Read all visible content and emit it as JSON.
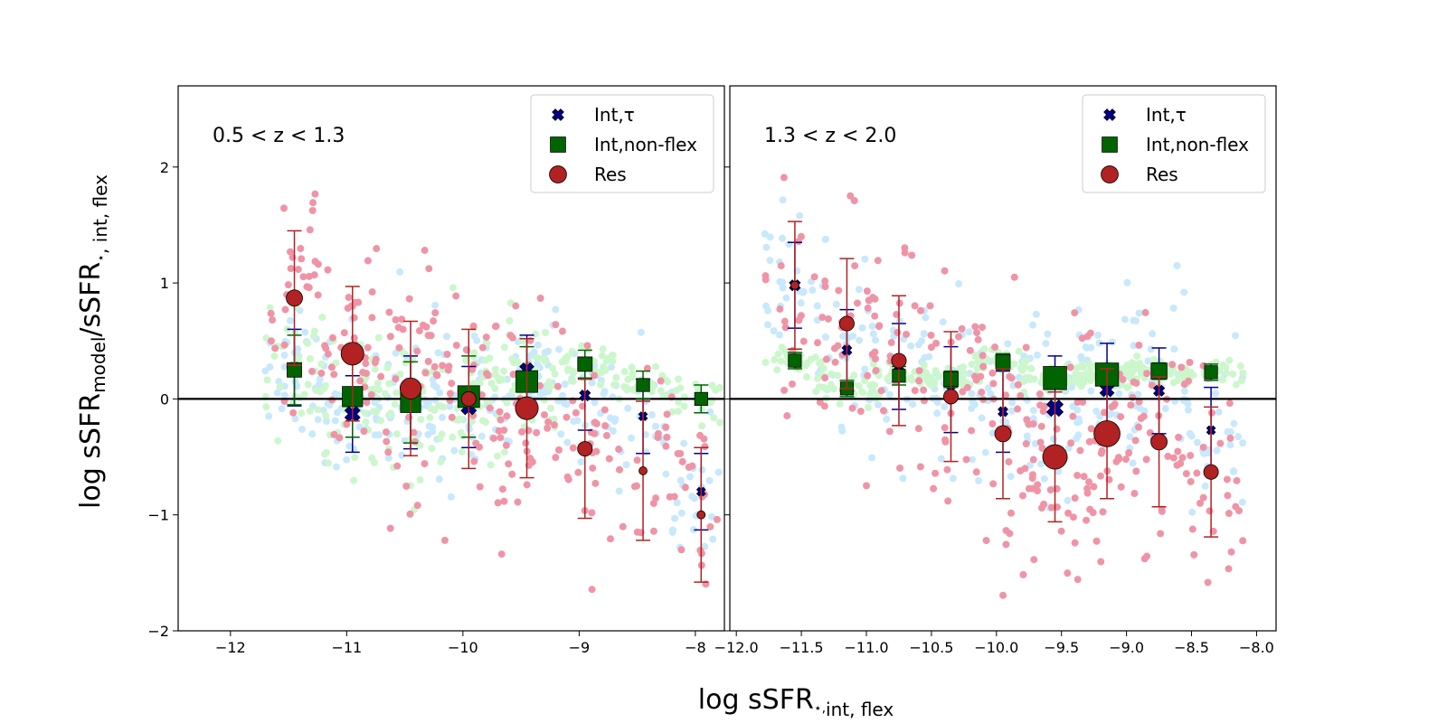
{
  "figure": {
    "xlabel": {
      "main": "log sSFR",
      "sub": "int, flex",
      "sup": "⋆,"
    },
    "ylabel": {
      "main": "log sSFR",
      "sub1": "model",
      "mid": "/sSFR",
      "sup2": "⋆",
      "sub2": ", int, flex"
    }
  },
  "colors": {
    "int_tau": "#00008b",
    "int_nonflex": "#006400",
    "res": "#b22222",
    "scatter_int_tau": "#87cefa",
    "scatter_int_nonflex": "#90ee90",
    "scatter_res": "#dc143c"
  },
  "chart_data": [
    {
      "type": "scatter",
      "panel_label": "0.5 < z < 1.3",
      "xlim": [
        -12.45,
        -7.75
      ],
      "ylim": [
        -2,
        2.7
      ],
      "xticks": [
        -12,
        -11,
        -10,
        -9,
        -8
      ],
      "xtick_labels": [
        "−12",
        "−11",
        "−10",
        "−9",
        "−8"
      ],
      "yticks": [
        -2,
        -1,
        0,
        1,
        2
      ],
      "ytick_labels": [
        "−2",
        "−1",
        "0",
        "1",
        "2"
      ],
      "hline": 0,
      "legend": {
        "placement": "top-right",
        "entries": [
          "Int,τ",
          "Int,non-flex",
          "Res"
        ]
      },
      "series": [
        {
          "name": "Int,τ",
          "marker": "x",
          "points": [
            {
              "x": -11.45,
              "y": 0.27,
              "err": 0.33,
              "size": 1.0
            },
            {
              "x": -10.95,
              "y": -0.13,
              "err": 0.33,
              "size": 1.4
            },
            {
              "x": -10.45,
              "y": -0.03,
              "err": 0.4,
              "size": 1.4
            },
            {
              "x": -9.95,
              "y": -0.07,
              "err": 0.35,
              "size": 1.4
            },
            {
              "x": -9.45,
              "y": 0.25,
              "err": 0.3,
              "size": 1.3
            },
            {
              "x": -8.95,
              "y": 0.03,
              "err": 0.3,
              "size": 1.0
            },
            {
              "x": -8.45,
              "y": -0.15,
              "err": 0.32,
              "size": 0.8
            },
            {
              "x": -7.95,
              "y": -0.8,
              "err": 0.33,
              "size": 0.8
            }
          ]
        },
        {
          "name": "Int,non-flex",
          "marker": "square",
          "points": [
            {
              "x": -11.45,
              "y": 0.25,
              "err": 0.3,
              "size": 1.0
            },
            {
              "x": -10.95,
              "y": 0.02,
              "err": 0.35,
              "size": 1.4
            },
            {
              "x": -10.45,
              "y": -0.03,
              "err": 0.35,
              "size": 1.4
            },
            {
              "x": -9.95,
              "y": 0.02,
              "err": 0.35,
              "size": 1.5
            },
            {
              "x": -9.45,
              "y": 0.15,
              "err": 0.3,
              "size": 1.5
            },
            {
              "x": -8.95,
              "y": 0.3,
              "err": 0.12,
              "size": 1.0
            },
            {
              "x": -8.45,
              "y": 0.12,
              "err": 0.12,
              "size": 0.9
            },
            {
              "x": -7.95,
              "y": 0.0,
              "err": 0.12,
              "size": 0.9
            }
          ]
        },
        {
          "name": "Res",
          "marker": "circle",
          "points": [
            {
              "x": -11.45,
              "y": 0.87,
              "err": 0.58,
              "size": 1.0
            },
            {
              "x": -10.95,
              "y": 0.39,
              "err": 0.58,
              "size": 1.4
            },
            {
              "x": -10.45,
              "y": 0.09,
              "err": 0.58,
              "size": 1.3
            },
            {
              "x": -9.95,
              "y": 0.0,
              "err": 0.6,
              "size": 0.9
            },
            {
              "x": -9.45,
              "y": -0.08,
              "err": 0.6,
              "size": 1.4
            },
            {
              "x": -8.95,
              "y": -0.43,
              "err": 0.6,
              "size": 0.9
            },
            {
              "x": -8.45,
              "y": -0.62,
              "err": 0.6,
              "size": 0.5
            },
            {
              "x": -7.95,
              "y": -1.0,
              "err": 0.58,
              "size": 0.5
            }
          ]
        }
      ]
    },
    {
      "type": "scatter",
      "panel_label": "1.3 < z < 2.0",
      "xlim": [
        -12.05,
        -7.85
      ],
      "ylim": [
        -2,
        2.7
      ],
      "xticks": [
        -12.0,
        -11.5,
        -11.0,
        -10.5,
        -10.0,
        -9.5,
        -9.0,
        -8.5,
        -8.0
      ],
      "xtick_labels": [
        "−12.0",
        "−11.5",
        "−11.0",
        "−10.5",
        "−10.0",
        "−9.5",
        "−9.0",
        "−8.5",
        "−8.0"
      ],
      "hline": 0,
      "legend": {
        "placement": "top-right",
        "entries": [
          "Int,τ",
          "Int,non-flex",
          "Res"
        ]
      },
      "series": [
        {
          "name": "Int,τ",
          "marker": "x",
          "points": [
            {
              "x": -11.55,
              "y": 0.98,
              "err": 0.37,
              "size": 1.0
            },
            {
              "x": -11.15,
              "y": 0.42,
              "err": 0.35,
              "size": 0.9
            },
            {
              "x": -10.75,
              "y": 0.28,
              "err": 0.37,
              "size": 0.9
            },
            {
              "x": -10.35,
              "y": 0.08,
              "err": 0.37,
              "size": 0.9
            },
            {
              "x": -9.95,
              "y": -0.11,
              "err": 0.35,
              "size": 0.9
            },
            {
              "x": -9.55,
              "y": -0.08,
              "err": 0.45,
              "size": 1.5
            },
            {
              "x": -9.15,
              "y": 0.08,
              "err": 0.4,
              "size": 1.3
            },
            {
              "x": -8.75,
              "y": 0.07,
              "err": 0.37,
              "size": 1.0
            },
            {
              "x": -8.35,
              "y": -0.27,
              "err": 0.37,
              "size": 0.8
            }
          ]
        },
        {
          "name": "Int,non-flex",
          "marker": "square",
          "points": [
            {
              "x": -11.55,
              "y": 0.33,
              "err": 0.07,
              "size": 0.9
            },
            {
              "x": -11.15,
              "y": 0.09,
              "err": 0.07,
              "size": 0.9
            },
            {
              "x": -10.75,
              "y": 0.2,
              "err": 0.08,
              "size": 0.9
            },
            {
              "x": -10.35,
              "y": 0.17,
              "err": 0.07,
              "size": 1.0
            },
            {
              "x": -9.95,
              "y": 0.32,
              "err": 0.07,
              "size": 1.0
            },
            {
              "x": -9.55,
              "y": 0.18,
              "err": 0.07,
              "size": 1.6
            },
            {
              "x": -9.15,
              "y": 0.21,
              "err": 0.07,
              "size": 1.6
            },
            {
              "x": -8.75,
              "y": 0.24,
              "err": 0.07,
              "size": 1.1
            },
            {
              "x": -8.35,
              "y": 0.23,
              "err": 0.07,
              "size": 0.9
            }
          ]
        },
        {
          "name": "Res",
          "marker": "circle",
          "points": [
            {
              "x": -11.55,
              "y": 0.98,
              "err": 0.55,
              "size": 0.5
            },
            {
              "x": -11.15,
              "y": 0.65,
              "err": 0.56,
              "size": 0.9
            },
            {
              "x": -10.75,
              "y": 0.33,
              "err": 0.56,
              "size": 0.9
            },
            {
              "x": -10.35,
              "y": 0.02,
              "err": 0.56,
              "size": 0.9
            },
            {
              "x": -9.95,
              "y": -0.3,
              "err": 0.56,
              "size": 1.0
            },
            {
              "x": -9.55,
              "y": -0.5,
              "err": 0.56,
              "size": 1.5
            },
            {
              "x": -9.15,
              "y": -0.3,
              "err": 0.56,
              "size": 1.6
            },
            {
              "x": -8.75,
              "y": -0.37,
              "err": 0.56,
              "size": 1.0
            },
            {
              "x": -8.35,
              "y": -0.63,
              "err": 0.56,
              "size": 0.9
            }
          ]
        }
      ]
    }
  ]
}
